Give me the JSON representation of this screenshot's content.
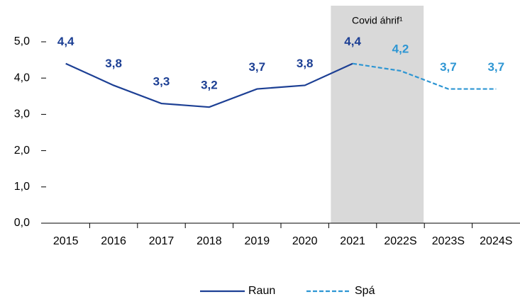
{
  "chart_data": {
    "type": "line",
    "categories": [
      "2015",
      "2016",
      "2017",
      "2018",
      "2019",
      "2020",
      "2021",
      "2022S",
      "2023S",
      "2024S"
    ],
    "series": [
      {
        "name": "Raun",
        "color": "#1c3f94",
        "dashed": false,
        "values": [
          4.4,
          3.8,
          3.3,
          3.2,
          3.7,
          3.8,
          4.4,
          null,
          null,
          null
        ],
        "value_labels": [
          "4,4",
          "3,8",
          "3,3",
          "3,2",
          "3,7",
          "3,8",
          "4,4",
          null,
          null,
          null
        ]
      },
      {
        "name": "Spá",
        "color": "#2e96d3",
        "dashed": true,
        "values": [
          null,
          null,
          null,
          null,
          null,
          null,
          4.4,
          4.2,
          3.7,
          3.7
        ],
        "value_labels": [
          null,
          null,
          null,
          null,
          null,
          null,
          null,
          "4,2",
          "3,7",
          "3,7"
        ]
      }
    ],
    "ylim": [
      0,
      5
    ],
    "yticks": [
      {
        "value": 0,
        "label": "0,0"
      },
      {
        "value": 1,
        "label": "1,0"
      },
      {
        "value": 2,
        "label": "2,0"
      },
      {
        "value": 3,
        "label": "3,0"
      },
      {
        "value": 4,
        "label": "4,0"
      },
      {
        "value": 5,
        "label": "5,0"
      }
    ],
    "annotation": {
      "text": "Covid áhrif¹",
      "from": 6,
      "to": 7
    },
    "grid": false,
    "legend": "bottom"
  }
}
